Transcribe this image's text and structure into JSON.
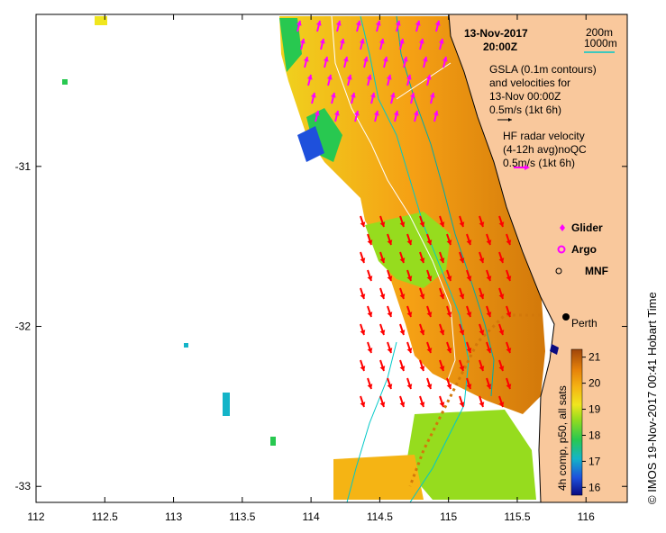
{
  "title": {
    "date": "13-Nov-2017",
    "time": "20:00Z"
  },
  "depth_legend": {
    "label_200": "200m",
    "label_1000": "1000m",
    "color_200": "#00aaaa",
    "color_1000": "#00c8c8"
  },
  "gsla_note": {
    "line1": "GSLA (0.1m contours)",
    "line2": "and velocities for",
    "line3": "13-Nov 00:00Z",
    "line4": "0.5m/s (1kt 6h)"
  },
  "hf_note": {
    "line1": "HF radar velocity",
    "line2": "(4-12h avg)noQC",
    "line3": "0.5m/s (1kt 6h)"
  },
  "symbols_legend": {
    "glider": "Glider",
    "argo": "Argo",
    "mnf": "MNF",
    "glider_color": "#ff00ff",
    "argo_color": "#ff00ff"
  },
  "place": {
    "city": "Perth"
  },
  "colorbar": {
    "title": "4h comp, p50, all sats",
    "ticks": [
      "21",
      "20",
      "19",
      "18",
      "17",
      "16"
    ],
    "min": 15.7,
    "max": 21.3
  },
  "side_text": "© IMOS 19-Nov-2017 00:41 Hobart Time",
  "axes": {
    "x_ticks": [
      "112",
      "112.5",
      "113",
      "113.5",
      "114",
      "114.5",
      "115",
      "115.5",
      "116"
    ],
    "y_ticks": [
      "-31",
      "-32",
      "-33"
    ],
    "lon_range": [
      112,
      116.3
    ],
    "lat_range": [
      -33.1,
      -30.05
    ]
  },
  "colors": {
    "land": "#f9c89c",
    "arrow_gsla": "#ff0000",
    "arrow_hf": "#ff00ff"
  }
}
